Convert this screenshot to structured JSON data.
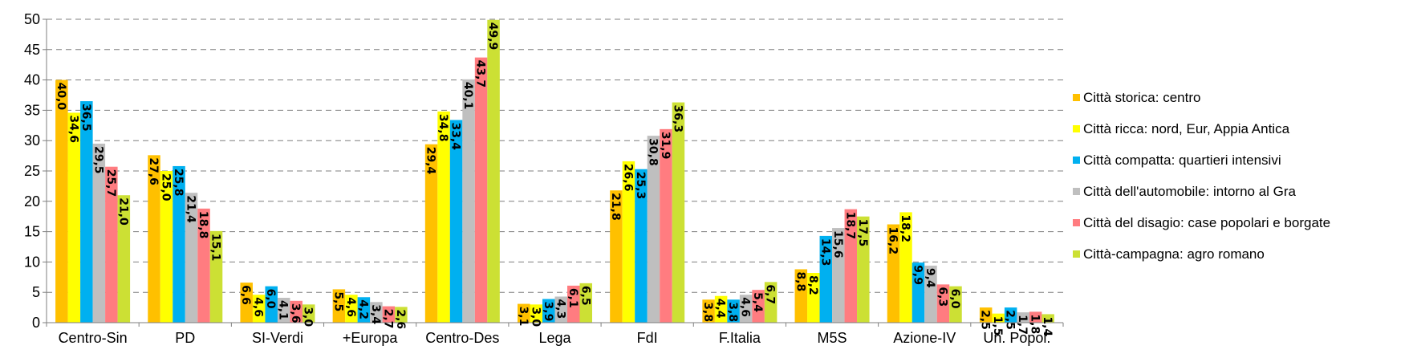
{
  "chart_data": {
    "type": "bar",
    "title": "",
    "xlabel": "",
    "ylabel": "",
    "ylim": [
      0,
      50
    ],
    "yticks": [
      0,
      5,
      10,
      15,
      20,
      25,
      30,
      35,
      40,
      45,
      50
    ],
    "grid": "horizontal dashed",
    "legend_position": "right",
    "categories": [
      "Centro-Sin",
      "PD",
      "SI-Verdi",
      "+Europa",
      "Centro-Des",
      "Lega",
      "FdI",
      "F.Italia",
      "M5S",
      "Azione-IV",
      "Un. Popol."
    ],
    "series": [
      {
        "name": "Città storica: centro",
        "color": "#FFC000",
        "values": [
          40.0,
          27.6,
          6.6,
          5.5,
          29.4,
          3.1,
          21.8,
          3.8,
          8.8,
          16.2,
          2.5
        ]
      },
      {
        "name": "Città ricca: nord, Eur, Appia Antica",
        "color": "#FFFF00",
        "values": [
          34.6,
          25.0,
          4.6,
          4.6,
          34.8,
          3.0,
          26.6,
          4.4,
          8.2,
          18.2,
          1.5
        ]
      },
      {
        "name": "Città compatta: quartieri intensivi",
        "color": "#00B0F0",
        "values": [
          36.5,
          25.8,
          6.0,
          4.2,
          33.4,
          3.9,
          25.3,
          3.8,
          14.3,
          9.9,
          2.5
        ]
      },
      {
        "name": "Città dell'automobile: intorno al Gra",
        "color": "#BFBFBF",
        "values": [
          29.5,
          21.4,
          4.1,
          3.4,
          40.1,
          4.3,
          30.8,
          4.6,
          15.6,
          9.4,
          1.7
        ]
      },
      {
        "name": "Città del disagio: case popolari e borgate",
        "color": "#FF7C80",
        "values": [
          25.7,
          18.8,
          3.6,
          2.7,
          43.7,
          6.1,
          31.9,
          5.4,
          18.7,
          6.3,
          1.8
        ]
      },
      {
        "name": "Città-campagna: agro romano",
        "color": "#CCE034",
        "values": [
          21.0,
          15.1,
          3.0,
          2.6,
          49.9,
          6.5,
          36.3,
          6.7,
          17.5,
          6.0,
          1.4
        ]
      }
    ]
  }
}
